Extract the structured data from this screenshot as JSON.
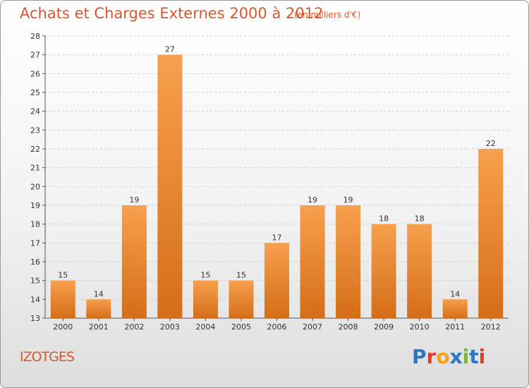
{
  "header": {
    "title": "Achats et Charges Externes 2000 à 2012",
    "unit": "(en milliers d'€)"
  },
  "footer": {
    "commune": "IZOTGES",
    "logo": "Proxiti"
  },
  "colors": {
    "bar_light": "#f7a04e",
    "bar_dark": "#d56d17",
    "accent": "#d9572c"
  },
  "chart_data": {
    "type": "bar",
    "title": "Achats et Charges Externes 2000 à 2012",
    "xlabel": "",
    "ylabel": "",
    "categories": [
      "2000",
      "2001",
      "2002",
      "2003",
      "2004",
      "2005",
      "2006",
      "2007",
      "2008",
      "2009",
      "2010",
      "2011",
      "2012"
    ],
    "values": [
      15,
      14,
      19,
      27,
      15,
      15,
      17,
      19,
      19,
      18,
      18,
      14,
      22
    ],
    "ylim": [
      13,
      28
    ],
    "yticks": [
      13,
      14,
      15,
      16,
      17,
      18,
      19,
      20,
      21,
      22,
      23,
      24,
      25,
      26,
      27,
      28
    ],
    "grid": true
  }
}
